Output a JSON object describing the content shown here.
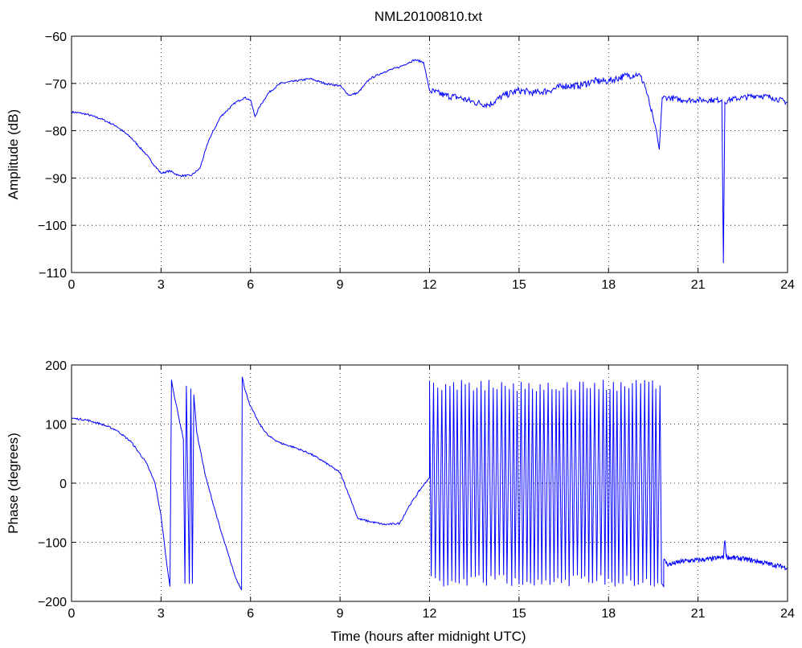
{
  "figure": {
    "title": "NML20100810.txt",
    "xlabel": "Time (hours after midnight UTC)"
  },
  "colors": {
    "series": "#0000ff",
    "axes": "#000000",
    "background": "#ffffff"
  },
  "chart_data": [
    {
      "type": "line",
      "title": "NML20100810.txt",
      "ylabel": "Amplitude (dB)",
      "xlabel": "",
      "xlim": [
        0,
        24
      ],
      "ylim": [
        -110,
        -60
      ],
      "xticks": [
        0,
        3,
        6,
        9,
        12,
        15,
        18,
        21,
        24
      ],
      "yticks": [
        -110,
        -100,
        -90,
        -80,
        -70,
        -60
      ],
      "grid": true,
      "series": [
        {
          "x": [
            0,
            0.5,
            1,
            1.5,
            2,
            2.5,
            2.8,
            3,
            3.3,
            3.6,
            4,
            4.3,
            4.6,
            5,
            5.5,
            5.8,
            6,
            6.15,
            6.3,
            6.6,
            7,
            7.5,
            8,
            8.5,
            9,
            9.3,
            9.6,
            10,
            10.5,
            11,
            11.5,
            11.8,
            12,
            12.5,
            13,
            13.5,
            14,
            14.5,
            15,
            15.5,
            16,
            16.5,
            17,
            17.5,
            18,
            18.5,
            19,
            19.2,
            19.4,
            19.6,
            19.7,
            19.8,
            20,
            20.5,
            21,
            21.5,
            21.8,
            21.85,
            21.9,
            22,
            22.5,
            23,
            23.5,
            24
          ],
          "y": [
            -76,
            -76.5,
            -77.5,
            -79,
            -81.5,
            -85,
            -87.5,
            -89,
            -88.5,
            -89.5,
            -89.5,
            -88,
            -82,
            -77,
            -74,
            -73,
            -73.5,
            -77,
            -75,
            -72,
            -70,
            -69.5,
            -69,
            -70,
            -70.5,
            -72.5,
            -72,
            -69,
            -67.5,
            -66.5,
            -65,
            -65.5,
            -71.5,
            -72.5,
            -73,
            -74,
            -74.5,
            -72.5,
            -71.5,
            -72,
            -71.5,
            -70.5,
            -70.5,
            -69.5,
            -69.5,
            -68.5,
            -68,
            -70,
            -75,
            -80,
            -84,
            -73,
            -73,
            -73.5,
            -73.5,
            -73.5,
            -73.5,
            -108,
            -74,
            -73.5,
            -73,
            -72.5,
            -73,
            -74
          ]
        }
      ]
    },
    {
      "type": "line",
      "title": "",
      "ylabel": "Phase (degrees)",
      "xlabel": "Time (hours after midnight UTC)",
      "xlim": [
        0,
        24
      ],
      "ylim": [
        -200,
        200
      ],
      "xticks": [
        0,
        3,
        6,
        9,
        12,
        15,
        18,
        21,
        24
      ],
      "yticks": [
        -200,
        -100,
        0,
        100,
        200
      ],
      "grid": true,
      "series": [
        {
          "x": [
            0,
            0.5,
            1,
            1.5,
            2,
            2.5,
            2.8,
            3,
            3.2,
            3.3,
            3.35,
            3.4,
            3.6,
            3.75,
            3.8,
            3.85,
            3.95,
            4.0,
            4.05,
            4.1,
            4.2,
            4.5,
            5,
            5.5,
            5.7,
            5.72,
            5.75,
            5.8,
            6,
            6.3,
            6.6,
            7,
            7.5,
            8,
            8.5,
            9,
            9.3,
            9.6,
            10,
            10.5,
            11,
            11.3,
            11.7,
            12
          ],
          "y": [
            110,
            107,
            100,
            90,
            70,
            35,
            0,
            -55,
            -140,
            -175,
            175,
            160,
            110,
            75,
            -170,
            165,
            -170,
            160,
            -170,
            150,
            85,
            10,
            -80,
            -160,
            -180,
            180,
            175,
            160,
            130,
            100,
            80,
            68,
            60,
            50,
            35,
            18,
            -20,
            -60,
            -65,
            -70,
            -68,
            -40,
            -10,
            10
          ]
        }
      ]
    }
  ]
}
